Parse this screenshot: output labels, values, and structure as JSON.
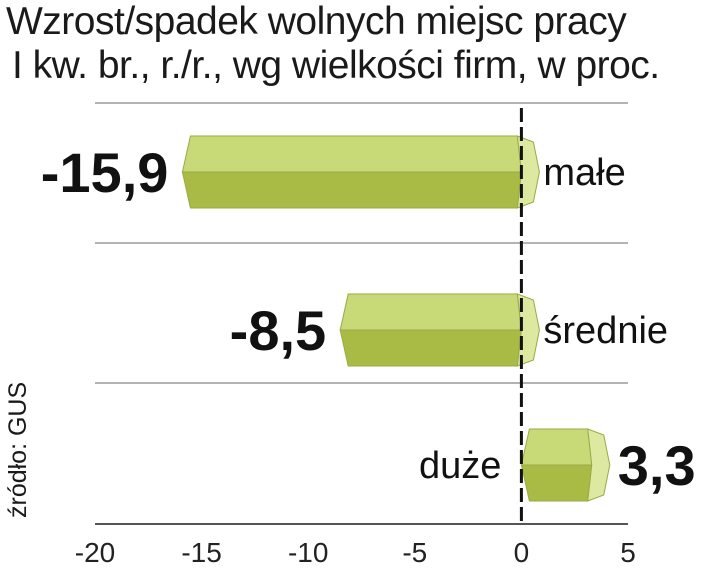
{
  "chart_data": {
    "type": "bar",
    "orientation": "horizontal",
    "title": "Wzrost/spadek wolnych miejsc pracy",
    "subtitle": "I kw. br., r./r., wg wielkości firm, w proc.",
    "categories": [
      "małe",
      "średnie",
      "duże"
    ],
    "values": [
      -15.9,
      -8.5,
      3.3
    ],
    "value_labels": [
      "-15,9",
      "-8,5",
      "3,3"
    ],
    "xlim": [
      -20,
      5
    ],
    "xticks": [
      -20,
      -15,
      -10,
      -5,
      0,
      5
    ],
    "xtick_labels": [
      "-20",
      "-15",
      "-10",
      "-5",
      "0",
      "5"
    ],
    "zero_line": "dashed",
    "source": "źródło: GUS",
    "colors": {
      "bar_light": "#c8da78",
      "bar_dark": "#a9bb45",
      "bar_tip": "#dde9a0",
      "bar_edge": "#9aaa45"
    }
  }
}
